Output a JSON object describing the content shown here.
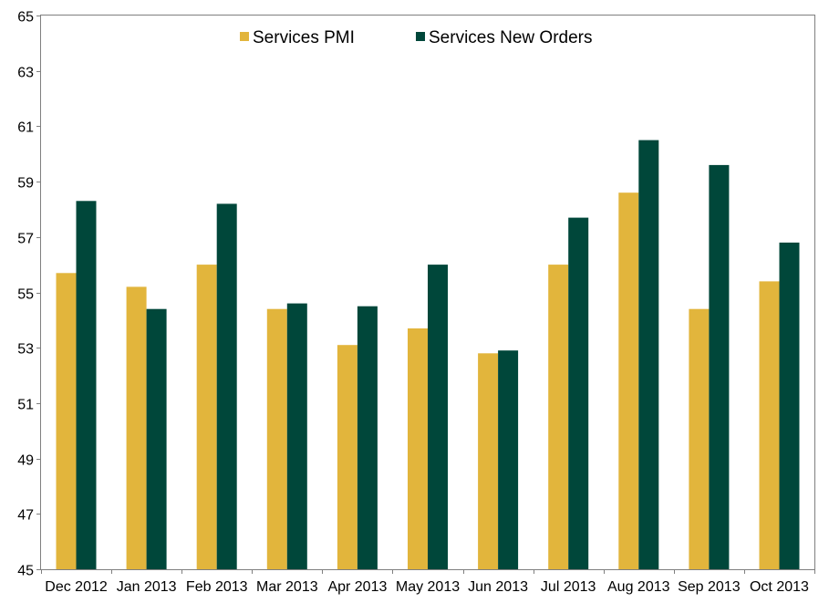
{
  "chart_data": {
    "type": "bar",
    "title": "",
    "xlabel": "",
    "ylabel": "",
    "categories": [
      "Dec 2012",
      "Jan 2013",
      "Feb 2013",
      "Mar 2013",
      "Apr 2013",
      "May 2013",
      "Jun 2013",
      "Jul 2013",
      "Aug 2013",
      "Sep 2013",
      "Oct 2013"
    ],
    "series": [
      {
        "name": "Services PMI",
        "color": "#e2b53c",
        "values": [
          55.7,
          55.2,
          56.0,
          54.4,
          53.1,
          53.7,
          52.8,
          56.0,
          58.6,
          54.4,
          55.4
        ]
      },
      {
        "name": "Services New Orders",
        "color": "#00473a",
        "values": [
          58.3,
          54.4,
          58.2,
          54.6,
          54.5,
          56.0,
          52.9,
          57.7,
          60.5,
          59.6,
          56.8
        ]
      }
    ],
    "ylim": [
      45,
      65
    ],
    "yticks": [
      45,
      47,
      49,
      51,
      53,
      55,
      57,
      59,
      61,
      63,
      65
    ],
    "grid": false,
    "legend_position": "top-center"
  }
}
